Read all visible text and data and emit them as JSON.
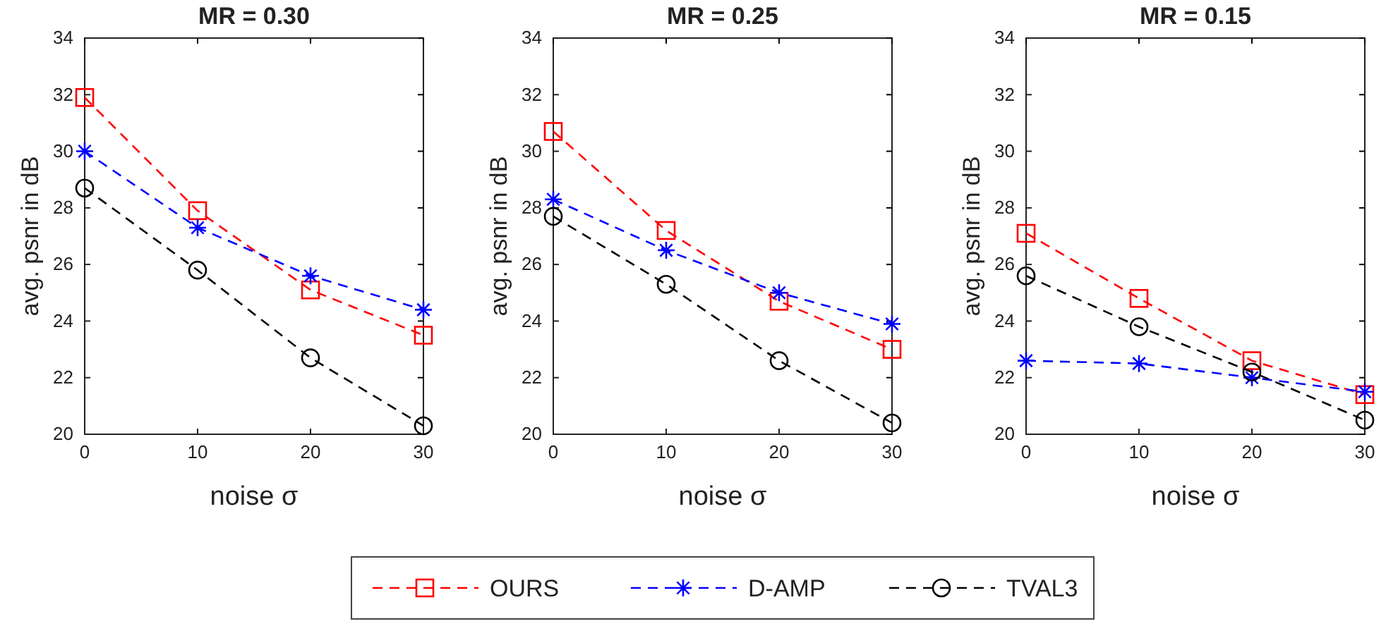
{
  "chart_data": [
    {
      "type": "line",
      "title": "MR = 0.30",
      "xlabel": "noise  σ",
      "ylabel": "avg. psnr in dB",
      "x": [
        0,
        10,
        20,
        30
      ],
      "xlim": [
        0,
        30
      ],
      "xticks": [
        0,
        10,
        20,
        30
      ],
      "ylim": [
        20,
        34
      ],
      "yticks": [
        20,
        22,
        24,
        26,
        28,
        30,
        32,
        34
      ],
      "grid": false,
      "line_style": "dashed",
      "series": [
        {
          "color": "#ff0000",
          "marker": "square",
          "values": [
            31.9,
            27.9,
            25.1,
            23.5
          ]
        },
        {
          "color": "#0000ff",
          "marker": "cross",
          "values": [
            30.0,
            27.3,
            25.6,
            24.4
          ]
        },
        {
          "color": "#000000",
          "marker": "circle",
          "values": [
            28.7,
            25.8,
            22.7,
            20.3
          ]
        }
      ]
    },
    {
      "type": "line",
      "title": "MR = 0.25",
      "xlabel": "noise  σ",
      "ylabel": "avg. psnr in dB",
      "x": [
        0,
        10,
        20,
        30
      ],
      "xlim": [
        0,
        30
      ],
      "xticks": [
        0,
        10,
        20,
        30
      ],
      "ylim": [
        20,
        34
      ],
      "yticks": [
        20,
        22,
        24,
        26,
        28,
        30,
        32,
        34
      ],
      "grid": false,
      "line_style": "dashed",
      "legend": "bottom",
      "series": [
        {
          "name": "OURS",
          "color": "#ff0000",
          "marker": "square",
          "values": [
            30.7,
            27.2,
            24.7,
            23.0
          ]
        },
        {
          "name": "D-AMP",
          "color": "#0000ff",
          "marker": "cross",
          "values": [
            28.3,
            26.5,
            25.0,
            23.9
          ]
        },
        {
          "name": "TVAL3",
          "color": "#000000",
          "marker": "circle",
          "values": [
            27.7,
            25.3,
            22.6,
            20.4
          ]
        }
      ]
    },
    {
      "type": "line",
      "title": "MR = 0.15",
      "xlabel": "noise  σ",
      "ylabel": "avg. psnr in dB",
      "x": [
        0,
        10,
        20,
        30
      ],
      "xlim": [
        0,
        30
      ],
      "xticks": [
        0,
        10,
        20,
        30
      ],
      "ylim": [
        20,
        34
      ],
      "yticks": [
        20,
        22,
        24,
        26,
        28,
        30,
        32,
        34
      ],
      "grid": false,
      "line_style": "dashed",
      "series": [
        {
          "color": "#ff0000",
          "marker": "square",
          "values": [
            27.1,
            24.8,
            22.6,
            21.4
          ]
        },
        {
          "color": "#0000ff",
          "marker": "cross",
          "values": [
            22.6,
            22.5,
            22.0,
            21.5
          ]
        },
        {
          "color": "#000000",
          "marker": "circle",
          "values": [
            25.6,
            23.8,
            22.2,
            20.5
          ]
        }
      ]
    }
  ]
}
